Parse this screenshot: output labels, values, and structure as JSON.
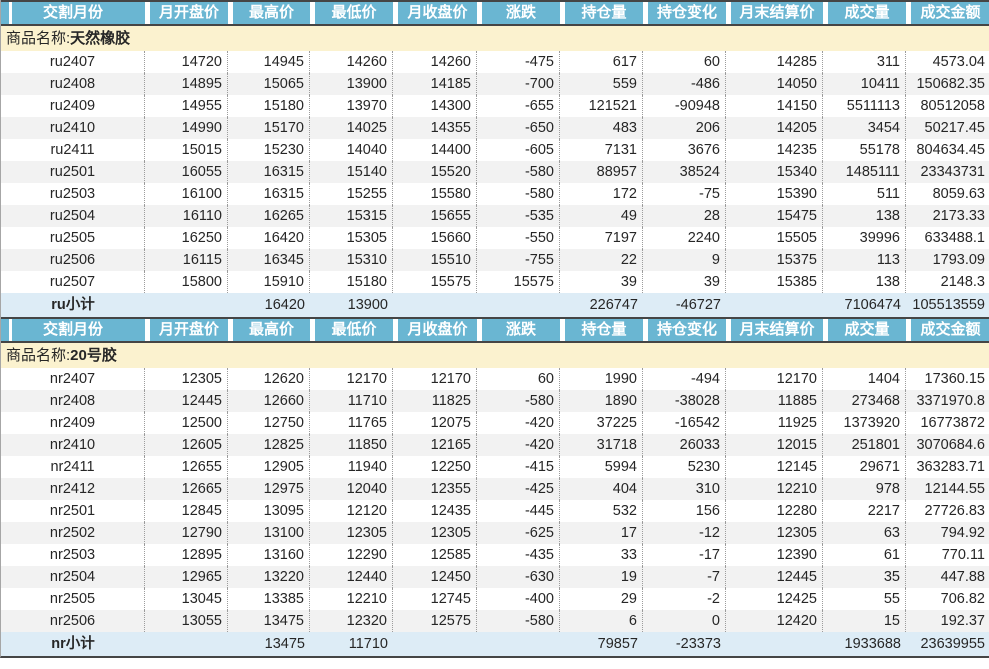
{
  "table": {
    "columns": [
      "交割月份",
      "月开盘价",
      "最高价",
      "最低价",
      "月收盘价",
      "涨跌",
      "持仓量",
      "持仓变化",
      "月末结算价",
      "成交量",
      "成交金额"
    ],
    "product_label": "商品名称:",
    "colors": {
      "header_bg": "#6AB6D2",
      "header_text": "#FFFFFF",
      "section_bg": "#FBF2CF",
      "subtotal_bg": "#DDECF6",
      "band_bg": "#F2F2F2",
      "border_dark": "#454545"
    },
    "sections": [
      {
        "product_name": "天然橡胶",
        "subtotal_label": "ru小计",
        "rows": [
          [
            "ru2407",
            "14720",
            "14945",
            "14260",
            "14260",
            "-475",
            "617",
            "60",
            "14285",
            "311",
            "4573.04"
          ],
          [
            "ru2408",
            "14895",
            "15065",
            "13900",
            "14185",
            "-700",
            "559",
            "-486",
            "14050",
            "10411",
            "150682.35"
          ],
          [
            "ru2409",
            "14955",
            "15180",
            "13970",
            "14300",
            "-655",
            "121521",
            "-90948",
            "14150",
            "5511113",
            "80512058"
          ],
          [
            "ru2410",
            "14990",
            "15170",
            "14025",
            "14355",
            "-650",
            "483",
            "206",
            "14205",
            "3454",
            "50217.45"
          ],
          [
            "ru2411",
            "15015",
            "15230",
            "14040",
            "14400",
            "-605",
            "7131",
            "3676",
            "14235",
            "55178",
            "804634.45"
          ],
          [
            "ru2501",
            "16055",
            "16315",
            "15140",
            "15520",
            "-580",
            "88957",
            "38524",
            "15340",
            "1485111",
            "23343731"
          ],
          [
            "ru2503",
            "16100",
            "16315",
            "15255",
            "15580",
            "-580",
            "172",
            "-75",
            "15390",
            "511",
            "8059.63"
          ],
          [
            "ru2504",
            "16110",
            "16265",
            "15315",
            "15655",
            "-535",
            "49",
            "28",
            "15475",
            "138",
            "2173.33"
          ],
          [
            "ru2505",
            "16250",
            "16420",
            "15305",
            "15660",
            "-550",
            "7197",
            "2240",
            "15505",
            "39996",
            "633488.1"
          ],
          [
            "ru2506",
            "16115",
            "16345",
            "15310",
            "15510",
            "-755",
            "22",
            "9",
            "15375",
            "113",
            "1793.09"
          ],
          [
            "ru2507",
            "15800",
            "15910",
            "15180",
            "15575",
            "15575",
            "39",
            "39",
            "15385",
            "138",
            "2148.3"
          ]
        ],
        "subtotal": [
          "",
          "16420",
          "13900",
          "",
          "",
          "226747",
          "-46727",
          "",
          "7106474",
          "105513559"
        ]
      },
      {
        "product_name": "20号胶",
        "subtotal_label": "nr小计",
        "rows": [
          [
            "nr2407",
            "12305",
            "12620",
            "12170",
            "12170",
            "60",
            "1990",
            "-494",
            "12170",
            "1404",
            "17360.15"
          ],
          [
            "nr2408",
            "12445",
            "12660",
            "11710",
            "11825",
            "-580",
            "1890",
            "-38028",
            "11885",
            "273468",
            "3371970.8"
          ],
          [
            "nr2409",
            "12500",
            "12750",
            "11765",
            "12075",
            "-420",
            "37225",
            "-16542",
            "11925",
            "1373920",
            "16773872"
          ],
          [
            "nr2410",
            "12605",
            "12825",
            "11850",
            "12165",
            "-420",
            "31718",
            "26033",
            "12015",
            "251801",
            "3070684.6"
          ],
          [
            "nr2411",
            "12655",
            "12905",
            "11940",
            "12250",
            "-415",
            "5994",
            "5230",
            "12145",
            "29671",
            "363283.71"
          ],
          [
            "nr2412",
            "12665",
            "12975",
            "12040",
            "12355",
            "-425",
            "404",
            "310",
            "12210",
            "978",
            "12144.55"
          ],
          [
            "nr2501",
            "12845",
            "13095",
            "12120",
            "12435",
            "-445",
            "532",
            "156",
            "12280",
            "2217",
            "27726.83"
          ],
          [
            "nr2502",
            "12790",
            "13100",
            "12305",
            "12305",
            "-625",
            "17",
            "-12",
            "12305",
            "63",
            "794.92"
          ],
          [
            "nr2503",
            "12895",
            "13160",
            "12290",
            "12585",
            "-435",
            "33",
            "-17",
            "12390",
            "61",
            "770.11"
          ],
          [
            "nr2504",
            "12965",
            "13220",
            "12440",
            "12450",
            "-630",
            "19",
            "-7",
            "12445",
            "35",
            "447.88"
          ],
          [
            "nr2505",
            "13045",
            "13385",
            "12210",
            "12745",
            "-400",
            "29",
            "-2",
            "12425",
            "55",
            "706.82"
          ],
          [
            "nr2506",
            "13055",
            "13475",
            "12320",
            "12575",
            "-580",
            "6",
            "0",
            "12420",
            "15",
            "192.37"
          ]
        ],
        "subtotal": [
          "",
          "13475",
          "11710",
          "",
          "",
          "79857",
          "-23373",
          "",
          "1933688",
          "23639955"
        ]
      }
    ]
  }
}
